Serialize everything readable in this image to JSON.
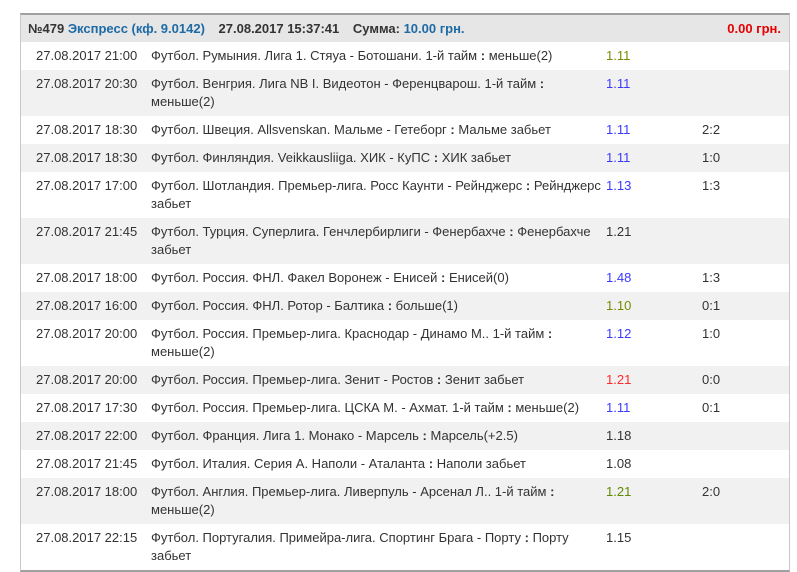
{
  "header": {
    "number": "№479",
    "type": "Экспресс (кф. 9.0142)",
    "datetime": "27.08.2017 15:37:41",
    "sum_label": "Сумма:",
    "sum_value": "10.00 грн.",
    "payout": "0.00 грн."
  },
  "colors": {
    "won": "#5f8a00",
    "win_blue": "#3a3aff",
    "lost": "#ff2a2a",
    "neutral": "#333333",
    "olive": "#7a8a00"
  },
  "rows": [
    {
      "date": "27.08.2017 21:00",
      "event": "Футбол. Румыния. Лига 1. Стяуа - Ботошани. 1-й тайм",
      "sep": ":",
      "bet": "меньше(2)",
      "odds": "1.11",
      "status": "olive",
      "score": ""
    },
    {
      "date": "27.08.2017 20:30",
      "event": "Футбол. Венгрия. Лига NB I. Видеотон - Ференцварош. 1-й тайм",
      "sep": ":",
      "bet": "меньше(2)",
      "odds": "1.11",
      "status": "win_blue",
      "score": ""
    },
    {
      "date": "27.08.2017 18:30",
      "event": "Футбол. Швеция. Allsvenskan. Мальме - Гетеборг",
      "sep": ":",
      "bet": "Мальме забьет",
      "odds": "1.11",
      "status": "win_blue",
      "score": "2:2"
    },
    {
      "date": "27.08.2017 18:30",
      "event": "Футбол. Финляндия. Veikkausliiga. ХИК - КуПС",
      "sep": ":",
      "bet": "ХИК забьет",
      "odds": "1.11",
      "status": "win_blue",
      "score": "1:0"
    },
    {
      "date": "27.08.2017 17:00",
      "event": "Футбол. Шотландия. Премьер-лига. Росс Каунти - Рейнджерс",
      "sep": ":",
      "bet": "Рейнджерс забьет",
      "odds": "1.13",
      "status": "win_blue",
      "score": "1:3"
    },
    {
      "date": "27.08.2017 21:45",
      "event": "Футбол. Турция. Суперлига. Генчлербирлиги - Фенербахче",
      "sep": ":",
      "bet": "Фенербахче забьет",
      "odds": "1.21",
      "status": "neutral",
      "score": ""
    },
    {
      "date": "27.08.2017 18:00",
      "event": "Футбол. Россия. ФНЛ. Факел Воронеж - Енисей",
      "sep": ":",
      "bet": "Енисей(0)",
      "odds": "1.48",
      "status": "win_blue",
      "score": "1:3"
    },
    {
      "date": "27.08.2017 16:00",
      "event": "Футбол. Россия. ФНЛ. Ротор - Балтика",
      "sep": ":",
      "bet": "больше(1)",
      "odds": "1.10",
      "status": "olive",
      "score": "0:1"
    },
    {
      "date": "27.08.2017 20:00",
      "event": "Футбол. Россия. Премьер-лига. Краснодар - Динамо М.. 1-й тайм",
      "sep": ":",
      "bet": "меньше(2)",
      "odds": "1.12",
      "status": "win_blue",
      "score": "1:0"
    },
    {
      "date": "27.08.2017 20:00",
      "event": "Футбол. Россия. Премьер-лига. Зенит - Ростов",
      "sep": ":",
      "bet": "Зенит забьет",
      "odds": "1.21",
      "status": "lost",
      "score": "0:0"
    },
    {
      "date": "27.08.2017 17:30",
      "event": "Футбол. Россия. Премьер-лига. ЦСКА М. - Ахмат. 1-й тайм",
      "sep": ":",
      "bet": "меньше(2)",
      "odds": "1.11",
      "status": "win_blue",
      "score": "0:1"
    },
    {
      "date": "27.08.2017 22:00",
      "event": "Футбол. Франция. Лига 1. Монако - Марсель",
      "sep": ":",
      "bet": "Марсель(+2.5)",
      "odds": "1.18",
      "status": "neutral",
      "score": ""
    },
    {
      "date": "27.08.2017 21:45",
      "event": "Футбол. Италия. Серия А. Наполи - Аталанта",
      "sep": ":",
      "bet": "Наполи забьет",
      "odds": "1.08",
      "status": "neutral",
      "score": ""
    },
    {
      "date": "27.08.2017 18:00",
      "event": "Футбол. Англия. Премьер-лига. Ливерпуль - Арсенал Л.. 1-й тайм",
      "sep": ":",
      "bet": "меньше(2)",
      "odds": "1.21",
      "status": "won",
      "score": "2:0"
    },
    {
      "date": "27.08.2017 22:15",
      "event": "Футбол. Португалия. Примейра-лига. Спортинг Брага - Порту",
      "sep": ":",
      "bet": "Порту забьет",
      "odds": "1.15",
      "status": "neutral",
      "score": ""
    }
  ]
}
